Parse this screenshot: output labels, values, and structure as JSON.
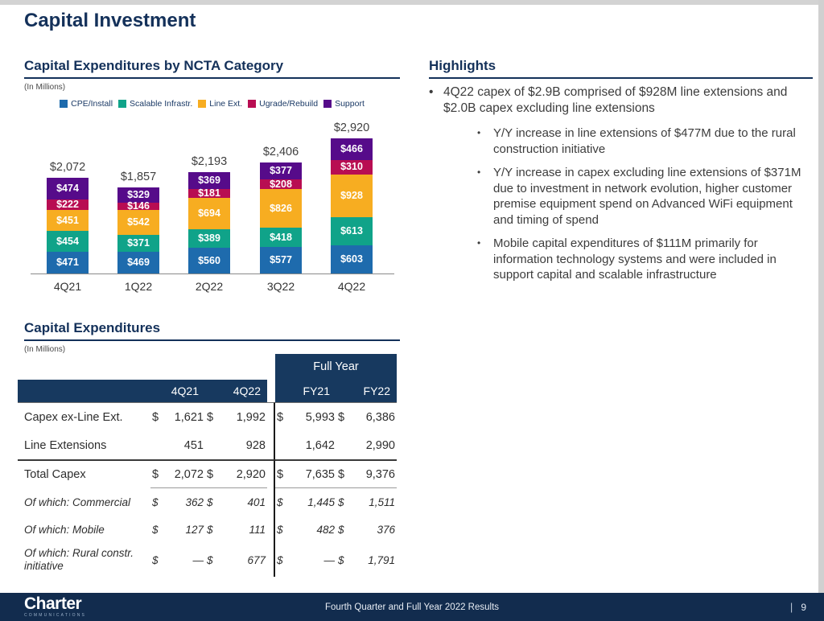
{
  "page": {
    "title": "Capital Investment"
  },
  "chart_section": {
    "heading": "Capital Expenditures by NCTA Category",
    "units": "(In Millions)"
  },
  "chart_data": {
    "type": "bar",
    "stacked": true,
    "title": "Capital Expenditures by NCTA Category",
    "units": "(In Millions)",
    "categories": [
      "4Q21",
      "1Q22",
      "2Q22",
      "3Q22",
      "4Q22"
    ],
    "series": [
      {
        "name": "CPE/Install",
        "color": "#1e6bad",
        "values": [
          471,
          469,
          560,
          577,
          603
        ]
      },
      {
        "name": "Scalable Infrastr.",
        "color": "#10a389",
        "values": [
          454,
          371,
          389,
          418,
          613
        ]
      },
      {
        "name": "Line Ext.",
        "color": "#f7ad21",
        "values": [
          451,
          542,
          694,
          826,
          928
        ]
      },
      {
        "name": "Ugrade/Rebuild",
        "color": "#b80d52",
        "values": [
          222,
          146,
          181,
          208,
          310
        ]
      },
      {
        "name": "Support",
        "color": "#560b8a",
        "values": [
          474,
          329,
          369,
          377,
          466
        ]
      }
    ],
    "totals": [
      2072,
      1857,
      2193,
      2406,
      2920
    ],
    "totals_display": [
      "$2,072",
      "$1,857",
      "$2,193",
      "$2,406",
      "$2,920"
    ],
    "value_prefix": "$",
    "ylim": [
      0,
      2920
    ],
    "grid": false,
    "legend_position": "top"
  },
  "highlights": {
    "heading": "Highlights",
    "bullets": [
      {
        "level": 1,
        "text": "4Q22 capex of $2.9B comprised of $928M line extensions and $2.0B capex excluding line extensions"
      },
      {
        "level": 2,
        "text": "Y/Y increase in line extensions of $477M due to the rural construction initiative"
      },
      {
        "level": 2,
        "text": "Y/Y increase in capex excluding line extensions of $371M due to investment in network evolution, higher customer premise equipment spend on Advanced WiFi equipment and timing of spend"
      },
      {
        "level": 2,
        "text": "Mobile capital expenditures of $111M primarily for information technology systems and were included in support capital and scalable infrastructure"
      }
    ]
  },
  "table_section": {
    "heading": "Capital Expenditures",
    "units": "(In Millions)",
    "group_header": "Full Year",
    "columns": [
      "4Q21",
      "4Q22",
      "FY21",
      "FY22"
    ],
    "rows": [
      {
        "label": "Capex ex-Line Ext.",
        "style": "normal",
        "dollars": [
          "$",
          "$",
          "$",
          "$"
        ],
        "values": [
          "1,621",
          "1,992",
          "5,993",
          "6,386"
        ]
      },
      {
        "label": "Line Extensions",
        "style": "normal",
        "dollars": [
          "",
          "",
          "",
          ""
        ],
        "values": [
          "451",
          "928",
          "1,642",
          "2,990"
        ]
      },
      {
        "label": "Total Capex",
        "style": "total",
        "dollars": [
          "$",
          "$",
          "$",
          "$"
        ],
        "values": [
          "2,072",
          "2,920",
          "7,635",
          "9,376"
        ]
      },
      {
        "label": "Of which: Commercial",
        "style": "italic",
        "dollars": [
          "$",
          "$",
          "$",
          "$"
        ],
        "values": [
          "362",
          "401",
          "1,445",
          "1,511"
        ]
      },
      {
        "label": "Of which: Mobile",
        "style": "italic",
        "dollars": [
          "$",
          "$",
          "$",
          "$"
        ],
        "values": [
          "127",
          "111",
          "482",
          "376"
        ]
      },
      {
        "label": "Of which: Rural constr. initiative",
        "style": "italic",
        "dollars": [
          "$",
          "$",
          "$",
          "$"
        ],
        "values": [
          "—",
          "677",
          "—",
          "1,791"
        ]
      }
    ]
  },
  "footer": {
    "logo": "Charter",
    "logo_sub": "COMMUNICATIONS",
    "center_text": "Fourth Quarter and Full Year 2022 Results",
    "divider": "|",
    "page_number": "9"
  },
  "colors": {
    "heading_navy": "#14315a",
    "table_header_navy": "#17395f",
    "footer_navy": "#122c4e",
    "cpe_install": "#1e6bad",
    "scalable_infrastr": "#10a389",
    "line_ext": "#f7ad21",
    "ugrade_rebuild": "#b80d52",
    "support": "#560b8a"
  }
}
